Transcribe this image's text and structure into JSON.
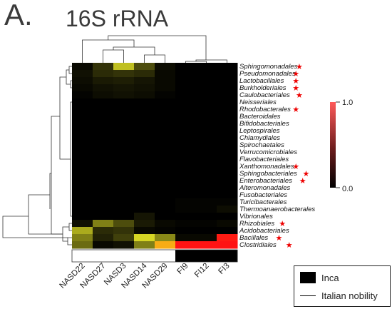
{
  "header": {
    "letter": "A.",
    "title": "16S rRNA"
  },
  "colorbar": {
    "max_label": "1.0",
    "min_label": "0.0",
    "colors": [
      "#000000",
      "#ff5a5a"
    ]
  },
  "legend": {
    "items": [
      {
        "label": "Inca",
        "color": "#000000"
      },
      {
        "label": "Italian nobility",
        "color": "#ffffff"
      }
    ]
  },
  "chart_data": {
    "type": "heatmap",
    "columns": [
      "NASD22",
      "NASD27",
      "NASD3",
      "NASD14",
      "NASD29",
      "FI9",
      "FI12",
      "FI3"
    ],
    "column_groups": [
      "Italian nobility",
      "Italian nobility",
      "Italian nobility",
      "Italian nobility",
      "Italian nobility",
      "Inca",
      "Inca",
      "Inca"
    ],
    "rows": [
      {
        "label": "Sphingomonadales",
        "starred": true
      },
      {
        "label": "Pseudomonadales",
        "starred": true
      },
      {
        "label": "Lactobacillales",
        "starred": true
      },
      {
        "label": "Burkholderiales",
        "starred": true
      },
      {
        "label": "Caulobacteriales",
        "starred": true
      },
      {
        "label": "Neisseriales",
        "starred": false
      },
      {
        "label": "Rhodobacterales",
        "starred": true
      },
      {
        "label": "Bacteroidales",
        "starred": false
      },
      {
        "label": "Bifidobacteriales",
        "starred": false
      },
      {
        "label": "Leptospirales",
        "starred": false
      },
      {
        "label": "Chlamydiales",
        "starred": false
      },
      {
        "label": "Spirochaetales",
        "starred": false
      },
      {
        "label": "Verrucomicrobiales",
        "starred": false
      },
      {
        "label": "Flavobacteriales",
        "starred": false
      },
      {
        "label": "Xanthomonadales",
        "starred": true
      },
      {
        "label": "Sphingobacteriales",
        "starred": true
      },
      {
        "label": "Enterobacteriales",
        "starred": true
      },
      {
        "label": "Alteromonadales",
        "starred": false
      },
      {
        "label": "Fusobacteriales",
        "starred": false
      },
      {
        "label": "Turicibacterales",
        "starred": false
      },
      {
        "label": "Thermoanaerobacterales",
        "starred": false
      },
      {
        "label": "Vibrionales",
        "starred": false
      },
      {
        "label": "Rhizobiales",
        "starred": true
      },
      {
        "label": "Acidobacteriales",
        "starred": false
      },
      {
        "label": "Bacillales",
        "starred": true
      },
      {
        "label": "Clostridiales",
        "starred": true
      }
    ],
    "values": [
      [
        0.02,
        0.12,
        0.45,
        0.18,
        0.03,
        0.0,
        0.0,
        0.0
      ],
      [
        0.04,
        0.1,
        0.12,
        0.1,
        0.02,
        0.0,
        0.0,
        0.0
      ],
      [
        0.03,
        0.06,
        0.07,
        0.05,
        0.02,
        0.0,
        0.0,
        0.0
      ],
      [
        0.02,
        0.04,
        0.05,
        0.04,
        0.02,
        0.0,
        0.0,
        0.0
      ],
      [
        0.01,
        0.03,
        0.04,
        0.03,
        0.01,
        0.0,
        0.0,
        0.0
      ],
      [
        0.0,
        0.0,
        0.0,
        0.0,
        0.0,
        0.0,
        0.0,
        0.0
      ],
      [
        0.0,
        0.0,
        0.0,
        0.0,
        0.0,
        0.0,
        0.0,
        0.0
      ],
      [
        0.0,
        0.0,
        0.0,
        0.0,
        0.0,
        0.0,
        0.0,
        0.0
      ],
      [
        0.0,
        0.0,
        0.0,
        0.0,
        0.0,
        0.0,
        0.0,
        0.0
      ],
      [
        0.0,
        0.0,
        0.0,
        0.0,
        0.0,
        0.0,
        0.0,
        0.0
      ],
      [
        0.0,
        0.0,
        0.0,
        0.0,
        0.0,
        0.0,
        0.0,
        0.0
      ],
      [
        0.0,
        0.0,
        0.0,
        0.0,
        0.0,
        0.0,
        0.0,
        0.0
      ],
      [
        0.0,
        0.0,
        0.0,
        0.0,
        0.0,
        0.0,
        0.0,
        0.0
      ],
      [
        0.0,
        0.0,
        0.0,
        0.0,
        0.0,
        0.0,
        0.0,
        0.0
      ],
      [
        0.0,
        0.0,
        0.0,
        0.0,
        0.0,
        0.0,
        0.0,
        0.0
      ],
      [
        0.0,
        0.0,
        0.0,
        0.0,
        0.0,
        0.0,
        0.0,
        0.0
      ],
      [
        0.0,
        0.0,
        0.0,
        0.0,
        0.0,
        0.0,
        0.0,
        0.0
      ],
      [
        0.0,
        0.0,
        0.0,
        0.0,
        0.0,
        0.0,
        0.0,
        0.0
      ],
      [
        0.0,
        0.0,
        0.0,
        0.0,
        0.0,
        0.0,
        0.0,
        0.0
      ],
      [
        0.0,
        0.0,
        0.0,
        0.0,
        0.0,
        0.01,
        0.01,
        0.01
      ],
      [
        0.0,
        0.0,
        0.0,
        0.0,
        0.0,
        0.01,
        0.01,
        0.03
      ],
      [
        0.0,
        0.0,
        0.0,
        0.05,
        0.0,
        0.0,
        0.0,
        0.0
      ],
      [
        0.04,
        0.3,
        0.18,
        0.06,
        0.02,
        0.01,
        0.01,
        0.02
      ],
      [
        0.4,
        0.1,
        0.12,
        0.02,
        0.01,
        0.0,
        0.0,
        0.0
      ],
      [
        0.3,
        0.08,
        0.15,
        0.5,
        0.32,
        0.02,
        0.02,
        0.98
      ],
      [
        0.25,
        0.02,
        0.04,
        0.3,
        0.75,
        0.99,
        0.99,
        0.99
      ]
    ],
    "scale": [
      0.0,
      1.0
    ]
  }
}
